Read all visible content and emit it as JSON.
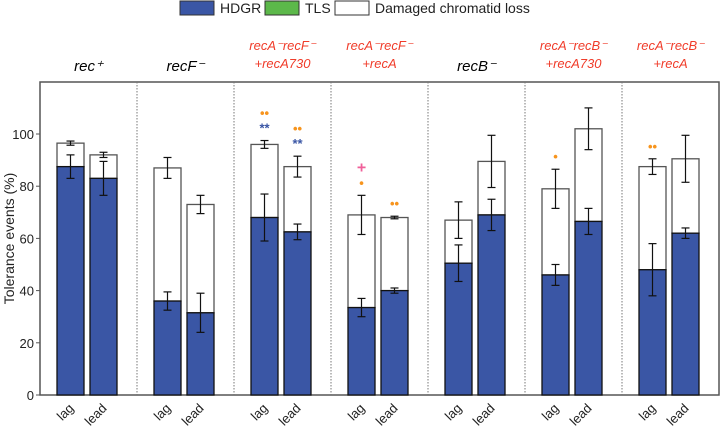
{
  "chart_data": {
    "type": "bar",
    "stacked": true,
    "ylabel": "Tolerance events (%)",
    "ylim": [
      0,
      120
    ],
    "yticks": [
      0,
      20,
      40,
      60,
      80,
      100
    ],
    "legend": {
      "placement": "top",
      "entries": [
        {
          "name": "HDGR",
          "color": "#3a56a5"
        },
        {
          "name": "TLS",
          "color": "#5cb84a"
        },
        {
          "name": "Damaged chromatid loss",
          "color": "#ffffff"
        }
      ]
    },
    "groups": [
      {
        "label": [
          "rec⁺"
        ],
        "color": "#000000",
        "bars": [
          {
            "x": "lag",
            "hdgr": 87.5,
            "hdgr_err": 4.5,
            "total": 96.5,
            "total_err": 0.8,
            "marks": []
          },
          {
            "x": "lead",
            "hdgr": 83,
            "hdgr_err": 6.5,
            "total": 92,
            "total_err": 1,
            "marks": []
          }
        ]
      },
      {
        "label": [
          "recF⁻"
        ],
        "color": "#000000",
        "bars": [
          {
            "x": "lag",
            "hdgr": 36,
            "hdgr_err": 3.5,
            "total": 87,
            "total_err": 4,
            "marks": []
          },
          {
            "x": "lead",
            "hdgr": 31.5,
            "hdgr_err": 7.5,
            "total": 73,
            "total_err": 3.5,
            "marks": []
          }
        ]
      },
      {
        "label": [
          "recA⁻recF⁻",
          "+recA730"
        ],
        "color": "#f03c2a",
        "bars": [
          {
            "x": "lag",
            "hdgr": 68,
            "hdgr_err": 9,
            "total": 96,
            "total_err": 1.5,
            "marks": [
              {
                "t": "**",
                "c": "#3a56a5"
              },
              {
                "t": "••",
                "c": "#f7941d"
              }
            ]
          },
          {
            "x": "lead",
            "hdgr": 62.5,
            "hdgr_err": 3,
            "total": 87.5,
            "total_err": 4,
            "marks": [
              {
                "t": "**",
                "c": "#3a56a5"
              },
              {
                "t": "••",
                "c": "#f7941d"
              }
            ]
          }
        ]
      },
      {
        "label": [
          "recA⁻recF⁻",
          "+recA"
        ],
        "color": "#f03c2a",
        "bars": [
          {
            "x": "lag",
            "hdgr": 33.5,
            "hdgr_err": 3.5,
            "total": 69,
            "total_err": 7.5,
            "marks": [
              {
                "t": "•",
                "c": "#f7941d"
              },
              {
                "t": "+",
                "c": "#f0609a"
              }
            ]
          },
          {
            "x": "lead",
            "hdgr": 40,
            "hdgr_err": 1,
            "total": 68,
            "total_err": 0.5,
            "marks": [
              {
                "t": "••",
                "c": "#f7941d"
              }
            ]
          }
        ]
      },
      {
        "label": [
          "recB⁻"
        ],
        "color": "#000000",
        "bars": [
          {
            "x": "lag",
            "hdgr": 50.5,
            "hdgr_err": 7,
            "total": 67,
            "total_err": 7,
            "marks": []
          },
          {
            "x": "lead",
            "hdgr": 69,
            "hdgr_err": 6,
            "total": 89.5,
            "total_err": 10,
            "marks": []
          }
        ]
      },
      {
        "label": [
          "recA⁻recB⁻",
          "+recA730"
        ],
        "color": "#f03c2a",
        "bars": [
          {
            "x": "lag",
            "hdgr": 46,
            "hdgr_err": 4,
            "total": 79,
            "total_err": 7.5,
            "marks": [
              {
                "t": "•",
                "c": "#f7941d"
              }
            ]
          },
          {
            "x": "lead",
            "hdgr": 66.5,
            "hdgr_err": 5,
            "total": 102,
            "total_err": 8,
            "marks": []
          }
        ]
      },
      {
        "label": [
          "recA⁻recB⁻",
          "+recA"
        ],
        "color": "#f03c2a",
        "bars": [
          {
            "x": "lag",
            "hdgr": 48,
            "hdgr_err": 10,
            "total": 87.5,
            "total_err": 3,
            "marks": [
              {
                "t": "••",
                "c": "#f7941d"
              }
            ]
          },
          {
            "x": "lead",
            "hdgr": 62,
            "hdgr_err": 2,
            "total": 90.5,
            "total_err": 9,
            "marks": []
          }
        ]
      }
    ]
  }
}
